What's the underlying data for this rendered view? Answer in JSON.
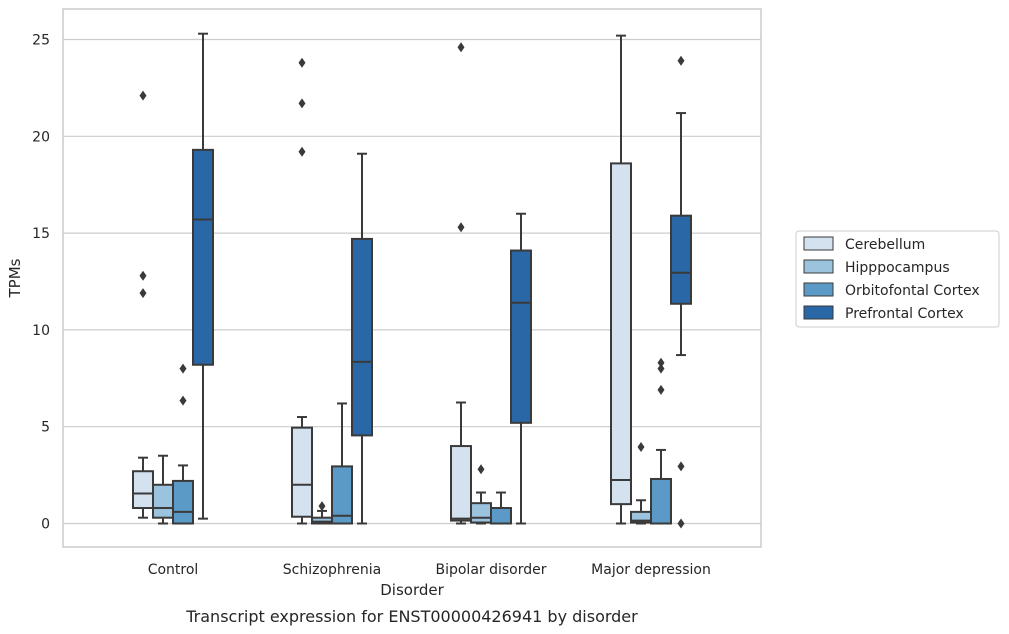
{
  "chart_data": {
    "type": "box",
    "title": "Transcript expression for ENST00000426941 by disorder",
    "xlabel": "Disorder",
    "ylabel": "TPMs",
    "ylim": [
      -1.2,
      26.5
    ],
    "yticks": [
      0,
      5,
      10,
      15,
      20,
      25
    ],
    "grid": "horizontal",
    "legend_position": "right",
    "categories": [
      "Control",
      "Schizophrenia",
      "Bipolar disorder",
      "Major depression"
    ],
    "series": [
      {
        "name": "Cerebellum",
        "color": "#d4e2f0",
        "boxes": [
          {
            "whislo": 0.3,
            "q1": 0.8,
            "med": 1.55,
            "q3": 2.7,
            "whishi": 3.4,
            "fliers": [
              22.1,
              12.8,
              11.9
            ]
          },
          {
            "whislo": 0.0,
            "q1": 0.35,
            "med": 2.0,
            "q3": 4.95,
            "whishi": 5.5,
            "fliers": [
              23.8,
              21.7,
              19.2
            ]
          },
          {
            "whislo": 0.0,
            "q1": 0.15,
            "med": 0.25,
            "q3": 4.0,
            "whishi": 6.25,
            "fliers": [
              24.6,
              15.3
            ]
          },
          {
            "whislo": 0.0,
            "q1": 1.0,
            "med": 2.25,
            "q3": 18.6,
            "whishi": 25.2,
            "fliers": []
          }
        ]
      },
      {
        "name": "Hipppocampus",
        "color": "#9cc3dd",
        "boxes": [
          {
            "whislo": 0.0,
            "q1": 0.3,
            "med": 0.8,
            "q3": 2.0,
            "whishi": 3.5,
            "fliers": []
          },
          {
            "whislo": 0.0,
            "q1": 0.0,
            "med": 0.1,
            "q3": 0.3,
            "whishi": 0.65,
            "fliers": [
              0.9
            ]
          },
          {
            "whislo": 0.0,
            "q1": 0.05,
            "med": 0.3,
            "q3": 1.05,
            "whishi": 1.6,
            "fliers": [
              2.8
            ]
          },
          {
            "whislo": 0.0,
            "q1": 0.05,
            "med": 0.15,
            "q3": 0.6,
            "whishi": 1.2,
            "fliers": [
              3.95
            ]
          }
        ]
      },
      {
        "name": "Orbitofontal Cortex",
        "color": "#5b9ac7",
        "boxes": [
          {
            "whislo": 0.0,
            "q1": 0.0,
            "med": 0.6,
            "q3": 2.2,
            "whishi": 3.0,
            "fliers": [
              8.0,
              6.35
            ]
          },
          {
            "whislo": 0.0,
            "q1": 0.0,
            "med": 0.4,
            "q3": 2.95,
            "whishi": 6.2,
            "fliers": []
          },
          {
            "whislo": 0.0,
            "q1": 0.0,
            "med": 0.0,
            "q3": 0.8,
            "whishi": 1.6,
            "fliers": []
          },
          {
            "whislo": 0.0,
            "q1": 0.0,
            "med": 0.0,
            "q3": 2.3,
            "whishi": 3.8,
            "fliers": [
              8.3,
              8.0,
              6.9
            ]
          }
        ]
      },
      {
        "name": "Prefrontal Cortex",
        "color": "#2a67a6",
        "boxes": [
          {
            "whislo": 0.25,
            "q1": 8.2,
            "med": 15.7,
            "q3": 19.3,
            "whishi": 25.3,
            "fliers": []
          },
          {
            "whislo": 0.0,
            "q1": 4.55,
            "med": 8.35,
            "q3": 14.7,
            "whishi": 19.1,
            "fliers": []
          },
          {
            "whislo": 0.0,
            "q1": 5.2,
            "med": 11.4,
            "q3": 14.1,
            "whishi": 16.0,
            "fliers": []
          },
          {
            "whislo": 8.7,
            "q1": 11.35,
            "med": 12.95,
            "q3": 15.9,
            "whishi": 21.2,
            "fliers": [
              23.9,
              2.95,
              0.0
            ]
          }
        ]
      }
    ]
  }
}
